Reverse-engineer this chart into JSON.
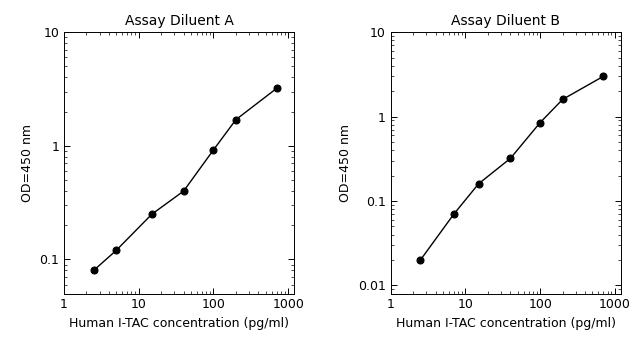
{
  "panel_A": {
    "title": "Assay Diluent A",
    "x": [
      2.5,
      5,
      15,
      40,
      100,
      200,
      700
    ],
    "y": [
      0.08,
      0.12,
      0.25,
      0.4,
      0.92,
      1.7,
      3.2
    ],
    "xlim": [
      1.5,
      1200
    ],
    "ylim": [
      0.05,
      10
    ],
    "yticks": [
      0.1,
      1,
      10
    ],
    "ytick_labels": [
      "0.1",
      "1",
      "10"
    ],
    "xticks": [
      1,
      10,
      100,
      1000
    ],
    "xtick_labels": [
      "1",
      "10",
      "100",
      "1000"
    ],
    "ylabel": "OD=450 nm",
    "xlabel": "Human I-TAC concentration (pg/ml)"
  },
  "panel_B": {
    "title": "Assay Diluent B",
    "x": [
      2.5,
      7,
      15,
      40,
      100,
      200,
      700
    ],
    "y": [
      0.02,
      0.07,
      0.16,
      0.32,
      0.85,
      1.6,
      3.0
    ],
    "xlim": [
      1.5,
      1200
    ],
    "ylim": [
      0.008,
      10
    ],
    "yticks": [
      0.01,
      0.1,
      1,
      10
    ],
    "ytick_labels": [
      "0.01",
      "0.1",
      "1",
      "10"
    ],
    "xticks": [
      1,
      10,
      100,
      1000
    ],
    "xtick_labels": [
      "1",
      "10",
      "100",
      "1000"
    ],
    "ylabel": "OD=450 nm",
    "xlabel": "Human I-TAC concentration (pg/ml)"
  },
  "line_color": "#000000",
  "marker": "o",
  "markersize": 5,
  "markerfacecolor": "#000000",
  "linewidth": 1.0,
  "title_fontsize": 10,
  "label_fontsize": 9,
  "tick_fontsize": 9,
  "background_color": "#ffffff"
}
